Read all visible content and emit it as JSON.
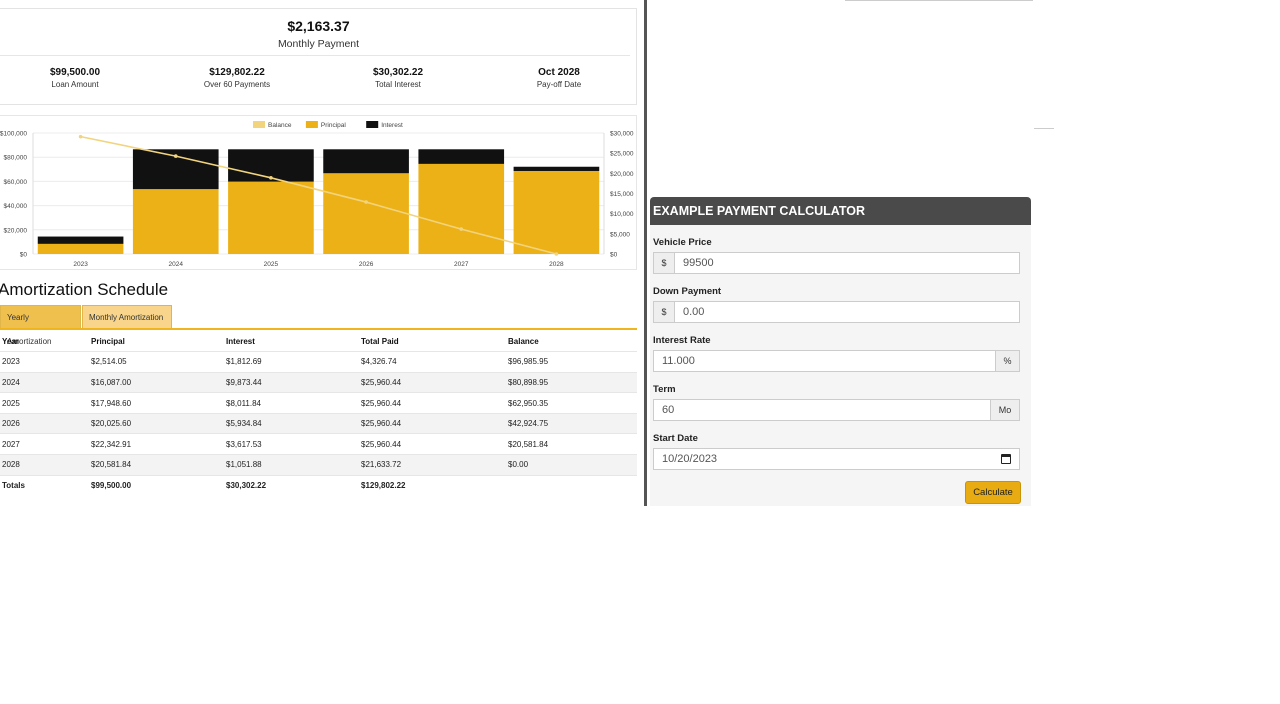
{
  "summary": {
    "monthly_payment": "$2,163.37",
    "monthly_label": "Monthly Payment",
    "stats": [
      {
        "value": "$99,500.00",
        "label": "Loan Amount"
      },
      {
        "value": "$129,802.22",
        "label": "Over 60 Payments"
      },
      {
        "value": "$30,302.22",
        "label": "Total Interest"
      },
      {
        "value": "Oct 2028",
        "label": "Pay-off Date"
      }
    ]
  },
  "chart_data": {
    "type": "bar",
    "categories": [
      "2023",
      "2024",
      "2025",
      "2026",
      "2027",
      "2028"
    ],
    "series": [
      {
        "name": "Balance",
        "kind": "line",
        "axis": "left",
        "values": [
          96985.95,
          80898.95,
          62950.35,
          42924.75,
          20581.84,
          0
        ]
      },
      {
        "name": "Principal",
        "kind": "stacked-bar",
        "axis": "right",
        "values": [
          2514.05,
          16087.0,
          17948.6,
          20025.6,
          22342.91,
          20581.84
        ]
      },
      {
        "name": "Interest",
        "kind": "stacked-bar",
        "axis": "right",
        "values": [
          1812.69,
          9873.44,
          8011.84,
          5934.84,
          3617.53,
          1051.88
        ]
      }
    ],
    "left_axis": {
      "ylim": [
        0,
        100000
      ],
      "ticks": [
        "$0",
        "$20,000",
        "$40,000",
        "$60,000",
        "$80,000",
        "$100,000"
      ]
    },
    "right_axis": {
      "ylim": [
        0,
        30000
      ],
      "ticks": [
        "$0",
        "$5,000",
        "$10,000",
        "$15,000",
        "$20,000",
        "$25,000",
        "$30,000"
      ]
    },
    "legend_placement": "top-center",
    "colors": {
      "Balance": "#f2d47e",
      "Principal": "#ecb116",
      "Interest": "#111111"
    }
  },
  "amortization": {
    "title": "Amortization Schedule",
    "tabs": [
      "Yearly Amortization",
      "Monthly Amortization"
    ],
    "headers": [
      "Year",
      "Principal",
      "Interest",
      "Total Paid",
      "Balance"
    ],
    "rows": [
      [
        "2023",
        "$2,514.05",
        "$1,812.69",
        "$4,326.74",
        "$96,985.95"
      ],
      [
        "2024",
        "$16,087.00",
        "$9,873.44",
        "$25,960.44",
        "$80,898.95"
      ],
      [
        "2025",
        "$17,948.60",
        "$8,011.84",
        "$25,960.44",
        "$62,950.35"
      ],
      [
        "2026",
        "$20,025.60",
        "$5,934.84",
        "$25,960.44",
        "$42,924.75"
      ],
      [
        "2027",
        "$22,342.91",
        "$3,617.53",
        "$25,960.44",
        "$20,581.84"
      ],
      [
        "2028",
        "$20,581.84",
        "$1,051.88",
        "$21,633.72",
        "$0.00"
      ]
    ],
    "totals": [
      "Totals",
      "$99,500.00",
      "$30,302.22",
      "$129,802.22",
      ""
    ]
  },
  "calculator": {
    "title": "EXAMPLE PAYMENT CALCULATOR",
    "vehicle_price_label": "Vehicle Price",
    "vehicle_price_prefix": "$",
    "vehicle_price_value": "99500",
    "down_payment_label": "Down Payment",
    "down_payment_prefix": "$",
    "down_payment_value": "0.00",
    "interest_rate_label": "Interest Rate",
    "interest_rate_value": "11.000",
    "interest_rate_suffix": "%",
    "term_label": "Term",
    "term_value": "60",
    "term_suffix": "Mo",
    "start_date_label": "Start Date",
    "start_date_value": "10/20/2023",
    "calculate_button": "Calculate"
  }
}
